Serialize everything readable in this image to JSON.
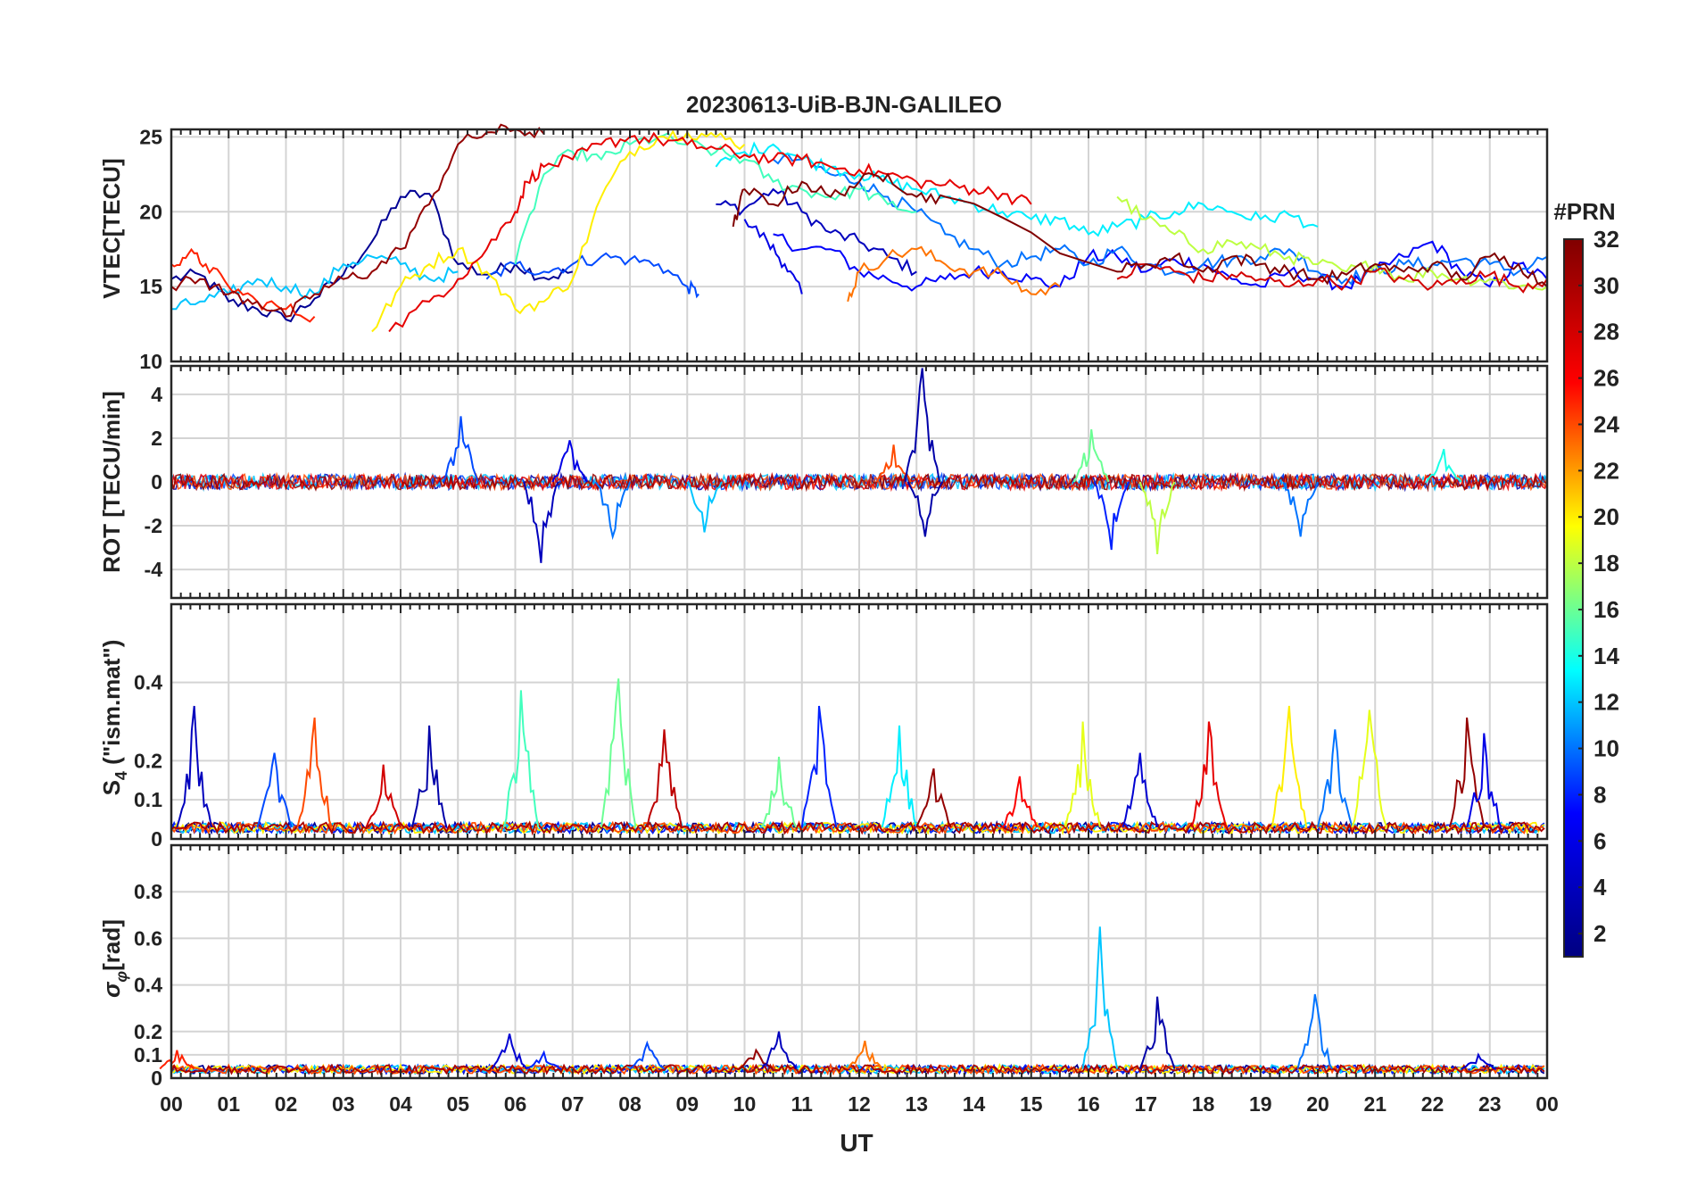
{
  "figure": {
    "title": "20230613-UiB-BJN-GALILEO",
    "xlabel": "UT",
    "x_tick_labels": [
      "00",
      "01",
      "02",
      "03",
      "04",
      "05",
      "06",
      "07",
      "08",
      "09",
      "10",
      "11",
      "12",
      "13",
      "14",
      "15",
      "16",
      "17",
      "18",
      "19",
      "20",
      "21",
      "22",
      "23",
      "00"
    ]
  },
  "colorbar": {
    "title": "#PRN",
    "range": [
      1,
      32
    ],
    "tick_labels": [
      "2",
      "4",
      "6",
      "8",
      "10",
      "12",
      "14",
      "16",
      "18",
      "20",
      "22",
      "24",
      "26",
      "28",
      "30",
      "32"
    ],
    "colormap": [
      "#000080",
      "#0000ff",
      "#00ffff",
      "#ffff00",
      "#ff0000",
      "#800000"
    ]
  },
  "chart_data": [
    {
      "type": "line",
      "panel": "vtec",
      "ylabel": "VTEC[TECU]",
      "xlim": [
        0,
        24
      ],
      "ylim": [
        10,
        25.5
      ],
      "y_tick_labels": [
        "10",
        "15",
        "20",
        "25"
      ],
      "grid": true,
      "series": [
        {
          "prn": 2,
          "x": [
            0.0,
            0.5,
            1.0,
            1.5,
            2.0,
            2.5,
            3.0,
            3.5,
            4.0,
            4.5,
            5.0,
            5.5,
            6.0,
            6.5,
            7.0
          ],
          "y": [
            15.5,
            15.8,
            14.0,
            13.5,
            12.8,
            14.2,
            15.8,
            18.0,
            21.0,
            21.2,
            16.5,
            15.8,
            16.5,
            15.6,
            16.0
          ]
        },
        {
          "prn": 4,
          "x": [
            9.5,
            10.0,
            10.5,
            11.0,
            11.5,
            12.0,
            12.5,
            13.0
          ],
          "y": [
            20.5,
            20.2,
            21.5,
            20.0,
            18.6,
            18.0,
            17.0,
            16.0
          ]
        },
        {
          "prn": 6,
          "x": [
            10.0,
            10.4,
            10.7,
            11.0
          ],
          "y": [
            19.5,
            18.0,
            16.5,
            14.5
          ]
        },
        {
          "prn": 7,
          "x": [
            10.5,
            11.0,
            11.5,
            12.0,
            12.5,
            13.0,
            13.5,
            14.0,
            14.5,
            15.0,
            15.5,
            16.0,
            16.5,
            17.0,
            17.5,
            18.0,
            18.5,
            19.0,
            19.5,
            20.0,
            20.5,
            21.0,
            21.5,
            22.0,
            22.5,
            23.0,
            23.5,
            24.0
          ],
          "y": [
            18.5,
            17.5,
            17.5,
            16.0,
            15.5,
            15.0,
            15.5,
            16.0,
            16.0,
            15.5,
            15.0,
            17.0,
            17.0,
            16.0,
            16.8,
            16.5,
            15.5,
            15.0,
            16.0,
            15.5,
            15.0,
            16.0,
            17.0,
            18.0,
            16.0,
            15.0,
            16.5,
            15.5
          ]
        },
        {
          "prn": 9,
          "x": [
            5.5,
            6.0,
            6.5,
            7.0,
            7.5,
            8.0,
            8.5,
            9.0,
            9.2
          ],
          "y": [
            15.5,
            16.5,
            16.0,
            16.5,
            17.0,
            16.8,
            16.5,
            15.0,
            14.5
          ]
        },
        {
          "prn": 10,
          "x": [
            10.5,
            11.0,
            11.5,
            12.0,
            12.5,
            13.0,
            13.5,
            14.0,
            14.5,
            15.0,
            15.5,
            16.0,
            16.5,
            17.0,
            17.5,
            18.0,
            18.5,
            19.0,
            19.5,
            20.0,
            20.5,
            21.0,
            21.5,
            22.0,
            22.5,
            23.0,
            23.5,
            24.0
          ],
          "y": [
            23.5,
            23.5,
            22.5,
            22.0,
            21.0,
            20.0,
            18.5,
            17.5,
            16.5,
            17.0,
            17.5,
            16.5,
            17.5,
            16.5,
            16.0,
            16.5,
            16.8,
            17.0,
            17.5,
            16.0,
            15.5,
            16.0,
            16.5,
            16.5,
            16.8,
            16.5,
            16.0,
            17.0
          ]
        },
        {
          "prn": 12,
          "x": [
            0.0,
            0.5,
            1.0,
            1.5,
            2.0,
            2.5,
            3.0,
            3.5,
            4.0,
            4.5,
            5.0
          ],
          "y": [
            13.5,
            14.0,
            14.5,
            15.5,
            15.0,
            14.5,
            16.5,
            17.0,
            16.5,
            15.5,
            16.0
          ]
        },
        {
          "prn": 13,
          "x": [
            9.5,
            10.0,
            10.5,
            11.0,
            11.5,
            12.0,
            12.5,
            13.0,
            13.5,
            14.0,
            14.5,
            15.0,
            15.5,
            16.0,
            16.5,
            17.0,
            17.5,
            18.0,
            18.5,
            19.0,
            19.5,
            20.0
          ],
          "y": [
            23.0,
            24.0,
            24.5,
            23.5,
            23.0,
            22.5,
            22.0,
            21.5,
            21.0,
            20.5,
            20.0,
            19.5,
            19.5,
            18.5,
            19.0,
            19.5,
            20.0,
            20.5,
            20.0,
            19.5,
            19.8,
            19.0
          ]
        },
        {
          "prn": 15,
          "x": [
            6.0,
            6.5,
            7.0,
            7.5,
            8.0,
            8.5,
            9.0,
            9.5,
            10.0,
            10.5,
            11.0,
            11.5,
            12.0,
            12.5,
            13.0
          ],
          "y": [
            16.5,
            22.5,
            24.0,
            23.5,
            24.5,
            25.0,
            24.5,
            24.0,
            23.5,
            22.0,
            21.5,
            21.0,
            21.5,
            20.5,
            20.0
          ]
        },
        {
          "prn": 18,
          "x": [
            16.5,
            17.0,
            17.5,
            18.0,
            18.5,
            19.0,
            19.5,
            20.0,
            20.5,
            21.0,
            21.5,
            22.0,
            22.5,
            23.0,
            23.5,
            24.0
          ],
          "y": [
            21.0,
            19.5,
            18.5,
            17.5,
            18.0,
            17.5,
            17.0,
            16.5,
            16.0,
            16.5,
            15.5,
            16.0,
            15.5,
            15.5,
            15.0,
            15.0
          ]
        },
        {
          "prn": 20,
          "x": [
            3.5,
            4.0,
            4.5,
            5.0,
            5.5,
            6.0,
            6.5,
            7.0,
            7.5,
            8.0,
            8.5,
            9.0,
            9.5,
            10.0
          ],
          "y": [
            12.0,
            15.0,
            16.5,
            17.5,
            16.0,
            13.5,
            14.0,
            15.5,
            21.0,
            24.0,
            25.0,
            25.3,
            25.0,
            24.5
          ]
        },
        {
          "prn": 23,
          "x": [
            11.8,
            12.0,
            12.5,
            13.0,
            13.5,
            14.0,
            14.5,
            15.0,
            15.5
          ],
          "y": [
            14.0,
            16.0,
            17.0,
            17.5,
            16.5,
            16.0,
            15.8,
            14.5,
            15.0
          ]
        },
        {
          "prn": 25,
          "x": [
            0.0,
            0.3,
            0.6,
            1.0,
            1.5,
            2.0,
            2.5
          ],
          "y": [
            16.5,
            17.2,
            16.5,
            15.0,
            14.0,
            13.5,
            13.0
          ]
        },
        {
          "prn": 27,
          "x": [
            3.8,
            4.5,
            5.0,
            5.5,
            6.0,
            6.2,
            6.5,
            7.0,
            7.5,
            8.0,
            8.5,
            9.0,
            9.5,
            10.0,
            10.5,
            11.0,
            11.5,
            12.0,
            12.5,
            13.0,
            13.5,
            14.0,
            14.5,
            15.0
          ],
          "y": [
            12.0,
            14.0,
            15.5,
            17.5,
            20.0,
            22.0,
            23.0,
            23.5,
            24.5,
            25.0,
            24.8,
            24.5,
            24.2,
            23.8,
            23.5,
            23.5,
            23.0,
            22.8,
            22.5,
            22.0,
            21.8,
            21.5,
            21.2,
            20.5
          ]
        },
        {
          "prn": 28,
          "x": [
            16.5,
            17.0,
            17.5,
            18.0,
            18.5,
            19.0,
            19.5,
            20.0,
            20.5,
            21.0,
            21.5,
            22.0,
            22.5,
            23.0,
            23.5,
            24.0
          ],
          "y": [
            15.5,
            16.5,
            16.0,
            15.5,
            15.8,
            15.5,
            15.0,
            15.5,
            15.2,
            16.0,
            15.5,
            15.0,
            15.5,
            15.8,
            15.0,
            15.5
          ]
        },
        {
          "prn": 31,
          "x": [
            0.0,
            0.5,
            1.0,
            1.5,
            2.0,
            2.5,
            3.0,
            3.5,
            4.0,
            4.5,
            5.0,
            5.5,
            6.0,
            6.5
          ],
          "y": [
            15.0,
            15.5,
            14.5,
            14.0,
            13.0,
            14.5,
            15.5,
            16.0,
            17.5,
            20.5,
            24.5,
            25.3,
            25.5,
            25.2
          ]
        },
        {
          "prn": 32,
          "x": [
            9.8,
            10.0,
            10.5,
            11.0,
            11.5,
            12.0,
            12.5,
            13.0,
            13.5,
            16.5,
            17.0,
            17.5,
            18.0,
            18.5,
            19.0,
            19.5,
            20.0,
            20.5,
            21.0,
            21.5,
            22.0,
            22.5,
            23.0,
            23.5,
            24.0
          ],
          "y": [
            19.0,
            21.5,
            20.5,
            22.0,
            21.0,
            22.0,
            22.5,
            21.0,
            21.0,
            16.0,
            16.5,
            17.0,
            16.0,
            17.0,
            16.5,
            16.0,
            15.5,
            15.8,
            16.5,
            16.0,
            16.5,
            15.5,
            17.0,
            16.5,
            15.0
          ]
        }
      ]
    },
    {
      "type": "line",
      "panel": "rot",
      "ylabel": "ROT [TECU/min]",
      "xlim": [
        0,
        24
      ],
      "ylim": [
        -5.3,
        5.3
      ],
      "y_tick_labels": [
        "-4",
        "-2",
        "0",
        "2",
        "4"
      ],
      "grid": true,
      "noise_band": 0.35,
      "spikes": [
        {
          "prn": 9,
          "x": 5.05,
          "y": 3.0
        },
        {
          "prn": 4,
          "x": 6.45,
          "y": -3.7
        },
        {
          "prn": 6,
          "x": 6.95,
          "y": 1.9
        },
        {
          "prn": 10,
          "x": 7.7,
          "y": -2.5
        },
        {
          "prn": 12,
          "x": 9.3,
          "y": -2.3
        },
        {
          "prn": 24,
          "x": 12.6,
          "y": 1.7
        },
        {
          "prn": 3,
          "x": 13.1,
          "y": 5.2
        },
        {
          "prn": 3,
          "x": 13.15,
          "y": -2.5
        },
        {
          "prn": 16,
          "x": 16.05,
          "y": 2.4
        },
        {
          "prn": 8,
          "x": 16.4,
          "y": -3.1
        },
        {
          "prn": 18,
          "x": 17.2,
          "y": -3.3
        },
        {
          "prn": 10,
          "x": 19.7,
          "y": -2.5
        },
        {
          "prn": 14,
          "x": 22.2,
          "y": 1.5
        }
      ]
    },
    {
      "type": "line",
      "panel": "s4",
      "ylabel": "S4 (\"ism.mat\")",
      "xlim": [
        0,
        24
      ],
      "ylim": [
        0,
        0.6
      ],
      "y_tick_labels": [
        "0",
        "0.1",
        "0.2",
        "0.4"
      ],
      "grid": true,
      "baseline": 0.03,
      "spikes": [
        {
          "prn": 4,
          "x": 0.4,
          "y": 0.34
        },
        {
          "prn": 9,
          "x": 1.8,
          "y": 0.22
        },
        {
          "prn": 24,
          "x": 2.5,
          "y": 0.31
        },
        {
          "prn": 3,
          "x": 4.5,
          "y": 0.29
        },
        {
          "prn": 28,
          "x": 3.7,
          "y": 0.19
        },
        {
          "prn": 15,
          "x": 6.1,
          "y": 0.38
        },
        {
          "prn": 16,
          "x": 7.8,
          "y": 0.41
        },
        {
          "prn": 29,
          "x": 8.6,
          "y": 0.28
        },
        {
          "prn": 16,
          "x": 10.6,
          "y": 0.21
        },
        {
          "prn": 8,
          "x": 11.3,
          "y": 0.34
        },
        {
          "prn": 13,
          "x": 12.7,
          "y": 0.29
        },
        {
          "prn": 31,
          "x": 13.3,
          "y": 0.18
        },
        {
          "prn": 26,
          "x": 14.8,
          "y": 0.16
        },
        {
          "prn": 19,
          "x": 15.9,
          "y": 0.3
        },
        {
          "prn": 5,
          "x": 16.9,
          "y": 0.22
        },
        {
          "prn": 27,
          "x": 18.1,
          "y": 0.3
        },
        {
          "prn": 20,
          "x": 19.5,
          "y": 0.34
        },
        {
          "prn": 10,
          "x": 20.3,
          "y": 0.28
        },
        {
          "prn": 19,
          "x": 20.9,
          "y": 0.33
        },
        {
          "prn": 31,
          "x": 22.6,
          "y": 0.31
        },
        {
          "prn": 6,
          "x": 22.9,
          "y": 0.27
        }
      ]
    },
    {
      "type": "line",
      "panel": "sigma_phi",
      "ylabel": "σφ[rad]",
      "xlim": [
        0,
        24
      ],
      "ylim": [
        0,
        1.0
      ],
      "y_tick_labels": [
        "0",
        "0.1",
        "0.2",
        "0.4",
        "0.6",
        "0.8"
      ],
      "grid": true,
      "baseline": 0.04,
      "spikes": [
        {
          "prn": 25,
          "x": 0.1,
          "y": 0.12
        },
        {
          "prn": 5,
          "x": 5.9,
          "y": 0.19
        },
        {
          "prn": 8,
          "x": 6.5,
          "y": 0.11
        },
        {
          "prn": 9,
          "x": 8.3,
          "y": 0.15
        },
        {
          "prn": 31,
          "x": 10.2,
          "y": 0.12
        },
        {
          "prn": 4,
          "x": 10.6,
          "y": 0.2
        },
        {
          "prn": 23,
          "x": 12.1,
          "y": 0.16
        },
        {
          "prn": 12,
          "x": 16.2,
          "y": 0.65
        },
        {
          "prn": 3,
          "x": 17.2,
          "y": 0.35
        },
        {
          "prn": 10,
          "x": 19.95,
          "y": 0.36
        },
        {
          "prn": 5,
          "x": 22.8,
          "y": 0.1
        }
      ]
    }
  ]
}
